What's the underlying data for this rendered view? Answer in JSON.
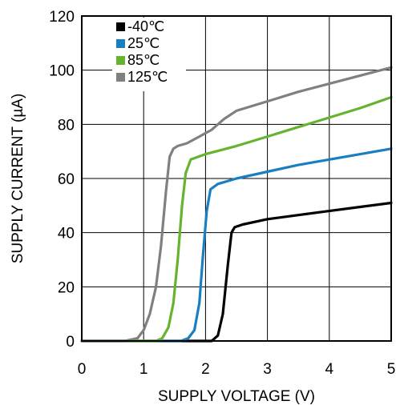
{
  "chart_data": {
    "type": "line",
    "title": "",
    "xlabel": "SUPPLY VOLTAGE (V)",
    "ylabel": "SUPPLY CURRENT (µA)",
    "xlim": [
      0,
      5
    ],
    "ylim": [
      0,
      120
    ],
    "xticks": [
      0,
      1,
      2,
      3,
      4,
      5
    ],
    "yticks": [
      0,
      20,
      40,
      60,
      80,
      100,
      120
    ],
    "grid": true,
    "legend_position": "top-left",
    "series": [
      {
        "name": "-40℃",
        "color": "#000000",
        "x": [
          0,
          2.1,
          2.2,
          2.28,
          2.36,
          2.42,
          2.47,
          2.6,
          3.0,
          3.5,
          4.0,
          4.5,
          5.0
        ],
        "y": [
          0,
          0,
          2,
          10,
          28,
          40,
          42,
          43,
          45,
          46.5,
          48,
          49.5,
          51
        ]
      },
      {
        "name": "25℃",
        "color": "#1a7fc1",
        "x": [
          0,
          1.6,
          1.72,
          1.82,
          1.9,
          1.96,
          2.02,
          2.08,
          2.2,
          2.5,
          3.0,
          3.5,
          4.0,
          4.5,
          5.0
        ],
        "y": [
          0,
          0,
          1,
          4,
          14,
          32,
          48,
          56,
          58,
          60,
          62.5,
          65,
          67,
          69,
          71
        ]
      },
      {
        "name": "85℃",
        "color": "#66b32e",
        "x": [
          0,
          1.2,
          1.3,
          1.4,
          1.48,
          1.55,
          1.62,
          1.68,
          1.76,
          2.0,
          2.5,
          3.0,
          3.5,
          4.0,
          4.5,
          5.0
        ],
        "y": [
          0,
          0,
          1,
          5,
          14,
          30,
          50,
          62,
          67,
          69,
          72,
          75.5,
          79,
          82.5,
          86,
          90
        ]
      },
      {
        "name": "125℃",
        "color": "#808080",
        "x": [
          0,
          0.7,
          0.9,
          1.0,
          1.1,
          1.2,
          1.28,
          1.36,
          1.42,
          1.48,
          1.55,
          1.7,
          1.9,
          2.1,
          2.3,
          2.5,
          3.0,
          3.5,
          4.0,
          4.5,
          5.0
        ],
        "y": [
          0,
          0,
          1,
          4,
          10,
          20,
          35,
          55,
          68,
          71,
          72,
          73,
          75.5,
          78,
          82,
          85,
          88.5,
          92,
          95,
          98,
          101
        ]
      }
    ]
  }
}
